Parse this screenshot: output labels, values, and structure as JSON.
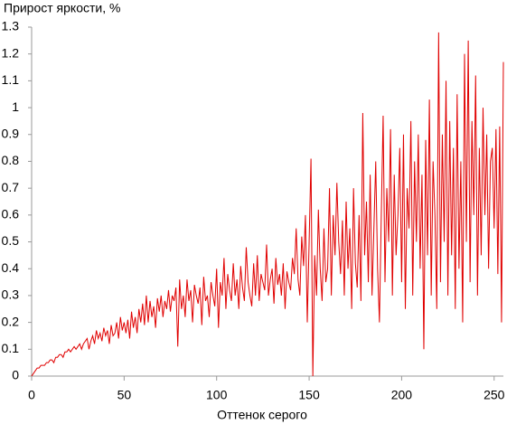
{
  "chart_data": {
    "type": "line",
    "y_label": "Прирост яркости, %",
    "x_label": "Оттенок серого",
    "x": [
      0,
      1,
      2,
      3,
      4,
      5,
      6,
      7,
      8,
      9,
      10,
      11,
      12,
      13,
      14,
      15,
      16,
      17,
      18,
      19,
      20,
      21,
      22,
      23,
      24,
      25,
      26,
      27,
      28,
      29,
      30,
      31,
      32,
      33,
      34,
      35,
      36,
      37,
      38,
      39,
      40,
      41,
      42,
      43,
      44,
      45,
      46,
      47,
      48,
      49,
      50,
      51,
      52,
      53,
      54,
      55,
      56,
      57,
      58,
      59,
      60,
      61,
      62,
      63,
      64,
      65,
      66,
      67,
      68,
      69,
      70,
      71,
      72,
      73,
      74,
      75,
      76,
      77,
      78,
      79,
      80,
      81,
      82,
      83,
      84,
      85,
      86,
      87,
      88,
      89,
      90,
      91,
      92,
      93,
      94,
      95,
      96,
      97,
      98,
      99,
      100,
      101,
      102,
      103,
      104,
      105,
      106,
      107,
      108,
      109,
      110,
      111,
      112,
      113,
      114,
      115,
      116,
      117,
      118,
      119,
      120,
      121,
      122,
      123,
      124,
      125,
      126,
      127,
      128,
      129,
      130,
      131,
      132,
      133,
      134,
      135,
      136,
      137,
      138,
      139,
      140,
      141,
      142,
      143,
      144,
      145,
      146,
      147,
      148,
      149,
      150,
      151,
      152,
      153,
      154,
      155,
      156,
      157,
      158,
      159,
      160,
      161,
      162,
      163,
      164,
      165,
      166,
      167,
      168,
      169,
      170,
      171,
      172,
      173,
      174,
      175,
      176,
      177,
      178,
      179,
      180,
      181,
      182,
      183,
      184,
      185,
      186,
      187,
      188,
      189,
      190,
      191,
      192,
      193,
      194,
      195,
      196,
      197,
      198,
      199,
      200,
      201,
      202,
      203,
      204,
      205,
      206,
      207,
      208,
      209,
      210,
      211,
      212,
      213,
      214,
      215,
      216,
      217,
      218,
      219,
      220,
      221,
      222,
      223,
      224,
      225,
      226,
      227,
      228,
      229,
      230,
      231,
      232,
      233,
      234,
      235,
      236,
      237,
      238,
      239,
      240,
      241,
      242,
      243,
      244,
      245,
      246,
      247,
      248,
      249,
      250,
      251,
      252,
      253,
      254,
      255
    ],
    "series": [
      {
        "color": "#e00000",
        "values": [
          0,
          0.01,
          0.02,
          0.03,
          0.03,
          0.04,
          0.04,
          0.04,
          0.05,
          0.05,
          0.06,
          0.06,
          0.05,
          0.07,
          0.07,
          0.08,
          0.08,
          0.07,
          0.09,
          0.09,
          0.1,
          0.09,
          0.1,
          0.11,
          0.1,
          0.11,
          0.12,
          0.1,
          0.12,
          0.13,
          0.14,
          0.1,
          0.13,
          0.15,
          0.12,
          0.17,
          0.14,
          0.16,
          0.13,
          0.18,
          0.15,
          0.17,
          0.12,
          0.19,
          0.15,
          0.16,
          0.2,
          0.14,
          0.22,
          0.17,
          0.2,
          0.16,
          0.21,
          0.14,
          0.24,
          0.18,
          0.22,
          0.16,
          0.25,
          0.2,
          0.27,
          0.19,
          0.3,
          0.2,
          0.28,
          0.22,
          0.26,
          0.18,
          0.29,
          0.24,
          0.3,
          0.22,
          0.28,
          0.25,
          0.32,
          0.24,
          0.3,
          0.28,
          0.33,
          0.11,
          0.36,
          0.25,
          0.3,
          0.22,
          0.36,
          0.28,
          0.32,
          0.2,
          0.34,
          0.3,
          0.27,
          0.33,
          0.19,
          0.37,
          0.28,
          0.3,
          0.22,
          0.35,
          0.3,
          0.26,
          0.4,
          0.18,
          0.35,
          0.3,
          0.44,
          0.25,
          0.38,
          0.32,
          0.28,
          0.42,
          0.3,
          0.36,
          0.25,
          0.41,
          0.33,
          0.28,
          0.48,
          0.35,
          0.3,
          0.26,
          0.42,
          0.3,
          0.45,
          0.28,
          0.38,
          0.35,
          0.32,
          0.49,
          0.3,
          0.36,
          0.4,
          0.27,
          0.44,
          0.34,
          0.38,
          0.3,
          0.42,
          0.25,
          0.39,
          0.35,
          0.32,
          0.44,
          0.38,
          0.55,
          0.36,
          0.3,
          0.52,
          0.41,
          0.6,
          0.2,
          0.5,
          0.81,
          0,
          0.45,
          0.3,
          0.62,
          0.4,
          0.28,
          0.55,
          0.35,
          0.4,
          0.7,
          0.3,
          0.6,
          0.45,
          0.72,
          0.5,
          0.38,
          0.58,
          0.3,
          0.65,
          0.4,
          0.55,
          0.25,
          0.7,
          0.42,
          0.33,
          0.6,
          0.28,
          0.98,
          0.45,
          0.65,
          0.35,
          0.75,
          0.3,
          0.55,
          0.8,
          0.4,
          0.2,
          0.6,
          0.97,
          0.35,
          0.7,
          0.5,
          0.92,
          0.3,
          0.75,
          0.45,
          0.6,
          0.85,
          0.35,
          0.9,
          0.25,
          0.7,
          0.55,
          0.95,
          0.3,
          0.8,
          0.5,
          0.9,
          0.4,
          0.75,
          0.1,
          0.88,
          0.45,
          1.03,
          0.3,
          0.8,
          0.6,
          0.25,
          1.28,
          0.35,
          0.9,
          0.5,
          1.1,
          0.3,
          0.95,
          0.45,
          0.85,
          0.25,
          1.05,
          0.4,
          0.8,
          0.2,
          1.2,
          0.5,
          1.25,
          0.35,
          0.95,
          0.6,
          1.12,
          0.3,
          0.85,
          0.45,
          1.0,
          0.6,
          0.9,
          0.4,
          0.8,
          0.85,
          0.55,
          0.92,
          0.38,
          0.93,
          0.2,
          1.17
        ]
      }
    ],
    "xlim": [
      0,
      255
    ],
    "ylim": [
      0,
      1.3
    ],
    "xticks": [
      0,
      50,
      100,
      150,
      200,
      250
    ],
    "yticks": [
      0,
      0.1,
      0.2,
      0.3,
      0.4,
      0.5,
      0.6,
      0.7,
      0.8,
      0.9,
      1,
      1.1,
      1.2,
      1.3
    ]
  }
}
